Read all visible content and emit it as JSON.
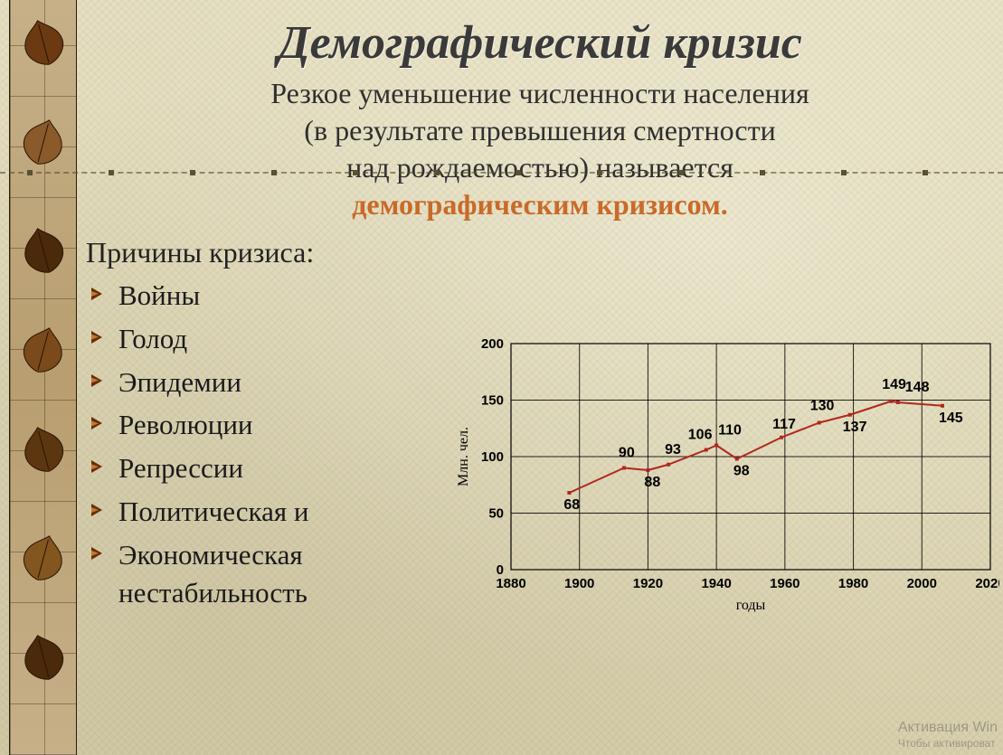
{
  "title": "Демографический кризис",
  "subtitle_line1": "Резкое уменьшение численности населения",
  "subtitle_line2": "(в результате превышения смертности",
  "subtitle_line3": "над рождаемостью) называется",
  "subtitle_highlight": "демографическим кризисом.",
  "causes_heading": "Причины кризиса:",
  "causes": [
    "Войны",
    "Голод",
    "Эпидемии",
    "Революции",
    "Репрессии",
    "Политическая и",
    "Экономическая нестабильность"
  ],
  "chart": {
    "type": "line",
    "x_label": "годы",
    "y_label": "Млн. чел.",
    "xlim": [
      1880,
      2020
    ],
    "ylim": [
      0,
      200
    ],
    "xtick_step": 20,
    "ytick_step": 50,
    "line_color": "#b0271e",
    "line_width": 2,
    "axis_color": "#000000",
    "grid_color": "#000000",
    "grid_width": 1,
    "background_color": "transparent",
    "tick_font_size": 15,
    "axis_label_font_size": 16,
    "data_label_font_size": 16,
    "data_label_font_weight": "bold",
    "data_label_font_family": "Arial Narrow, Arial, sans-serif",
    "series": [
      {
        "x": 1897,
        "y": 68,
        "label": "68",
        "label_dx": -6,
        "label_dy": 18
      },
      {
        "x": 1913,
        "y": 90,
        "label": "90",
        "label_dx": -6,
        "label_dy": -12
      },
      {
        "x": 1920,
        "y": 88,
        "label": "88",
        "label_dx": -4,
        "label_dy": 18
      },
      {
        "x": 1926,
        "y": 93,
        "label": "93",
        "label_dx": -4,
        "label_dy": -12
      },
      {
        "x": 1937,
        "y": 106,
        "label": "106",
        "label_dx": -20,
        "label_dy": -12
      },
      {
        "x": 1940,
        "y": 110,
        "label": "110",
        "label_dx": 2,
        "label_dy": -12
      },
      {
        "x": 1946,
        "y": 98,
        "label": "98",
        "label_dx": -4,
        "label_dy": 18
      },
      {
        "x": 1959,
        "y": 117,
        "label": "117",
        "label_dx": -10,
        "label_dy": -10
      },
      {
        "x": 1970,
        "y": 130,
        "label": "130",
        "label_dx": -10,
        "label_dy": -14
      },
      {
        "x": 1979,
        "y": 137,
        "label": "137",
        "label_dx": -8,
        "label_dy": 18
      },
      {
        "x": 1991,
        "y": 149,
        "label": "149",
        "label_dx": -10,
        "label_dy": -14
      },
      {
        "x": 1993,
        "y": 148,
        "label": "148",
        "label_dx": 8,
        "label_dy": -12
      },
      {
        "x": 2006,
        "y": 145,
        "label": "145",
        "label_dx": -4,
        "label_dy": 18
      }
    ]
  },
  "watermark_line1": "Активация Win",
  "watermark_line2": "Чтобы активироват",
  "leaf_positions": [
    20,
    130,
    250,
    360,
    470,
    590,
    700
  ],
  "leaf_colors": [
    "#6b3a12",
    "#8a5a2a",
    "#4a2a0a",
    "#7a4a1c",
    "#5c3610",
    "#83551f",
    "#4a2a0a"
  ]
}
